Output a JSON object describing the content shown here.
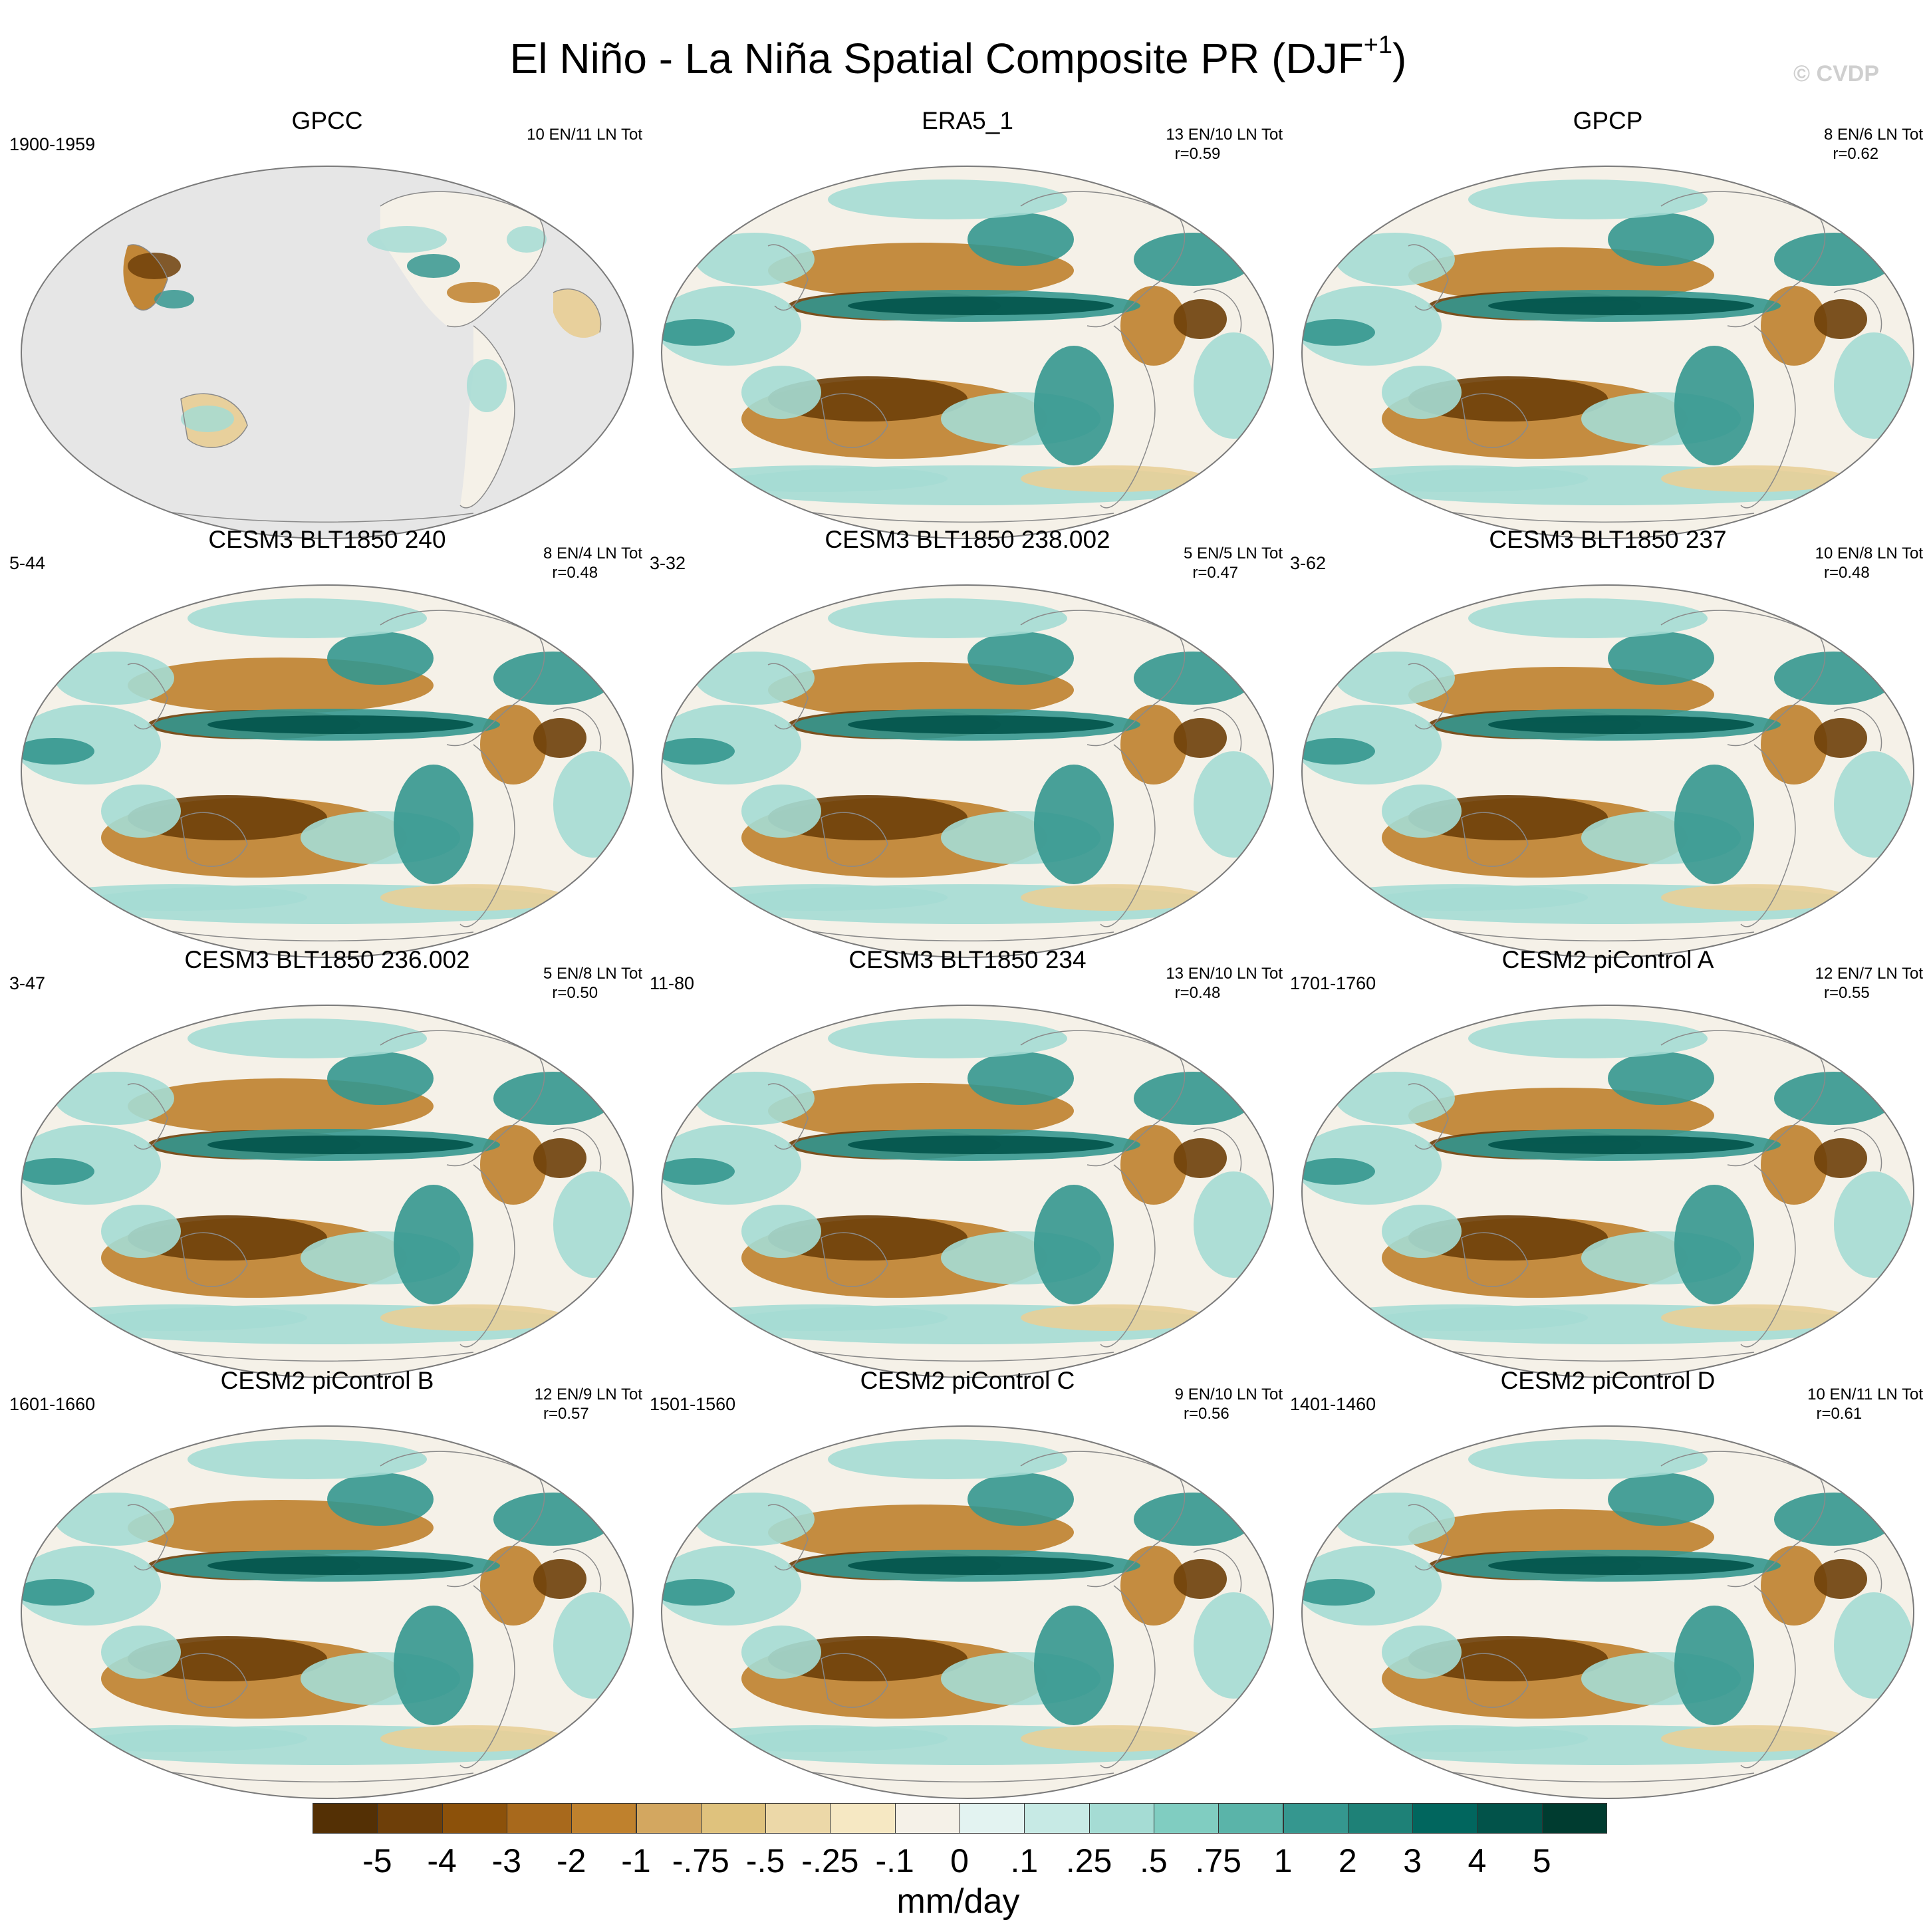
{
  "figure": {
    "title_main": "El Niño - La Niña Spatial Composite PR (DJF",
    "title_sup": "+1",
    "title_close": ")",
    "copyright": "© CVDP"
  },
  "panels": [
    {
      "title": "GPCC",
      "period": "1900-1959",
      "stats": "10 EN/11 LN Tot",
      "pattern": "land-only"
    },
    {
      "title": "ERA5_1",
      "period": "",
      "stats": "13 EN/10 LN Tot\n  r=0.59",
      "pattern": "global"
    },
    {
      "title": "GPCP",
      "period": "",
      "stats": "8 EN/6 LN Tot\n  r=0.62",
      "pattern": "global"
    },
    {
      "title": "CESM3 BLT1850 240",
      "period": "5-44",
      "stats": "8 EN/4 LN Tot\n  r=0.48",
      "pattern": "global"
    },
    {
      "title": "CESM3 BLT1850 238.002",
      "period": "3-32",
      "stats": "5 EN/5 LN Tot\n  r=0.47",
      "pattern": "global"
    },
    {
      "title": "CESM3 BLT1850 237",
      "period": "3-62",
      "stats": "10 EN/8 LN Tot\n  r=0.48",
      "pattern": "global"
    },
    {
      "title": "CESM3 BLT1850 236.002",
      "period": "3-47",
      "stats": "5 EN/8 LN Tot\n  r=0.50",
      "pattern": "global"
    },
    {
      "title": "CESM3 BLT1850 234",
      "period": "11-80",
      "stats": "13 EN/10 LN Tot\n  r=0.48",
      "pattern": "global"
    },
    {
      "title": "CESM2 piControl A",
      "period": "1701-1760",
      "stats": "12 EN/7 LN Tot\n  r=0.55",
      "pattern": "global"
    },
    {
      "title": "CESM2 piControl B",
      "period": "1601-1660",
      "stats": "12 EN/9 LN Tot\n  r=0.57",
      "pattern": "global"
    },
    {
      "title": "CESM2 piControl C",
      "period": "1501-1560",
      "stats": "9 EN/10 LN Tot\n  r=0.56",
      "pattern": "global"
    },
    {
      "title": "CESM2 piControl D",
      "period": "1401-1460",
      "stats": "10 EN/11 LN Tot\n  r=0.61",
      "pattern": "global"
    }
  ],
  "colorbar": {
    "units": "mm/day",
    "colors": [
      "#543005",
      "#6e3f09",
      "#8c510a",
      "#a8691c",
      "#bf812d",
      "#d3a760",
      "#dfc27d",
      "#ecd8a8",
      "#f6e8c3",
      "#f5f1e8",
      "#e3f3f1",
      "#c7eae5",
      "#a5dcd4",
      "#80cdc1",
      "#5ab4a9",
      "#35978f",
      "#1e8177",
      "#01665e",
      "#02534a",
      "#003c30"
    ],
    "ticks": [
      "-5",
      "-4",
      "-3",
      "-2",
      "-1",
      "-.75",
      "-.5",
      "-.25",
      "-.1",
      "0",
      ".1",
      ".25",
      ".5",
      ".75",
      "1",
      "2",
      "3",
      "4",
      "5"
    ]
  },
  "map_colors": {
    "ocean_missing": "#e6e6e6",
    "background": "#f5f1e8",
    "dry_strong": "#6e3f09",
    "dry_mid": "#bf812d",
    "dry_light": "#e8cf98",
    "wet_light": "#a5dcd4",
    "wet_mid": "#35978f",
    "wet_strong": "#01534a",
    "coast": "#8a8a8a"
  }
}
